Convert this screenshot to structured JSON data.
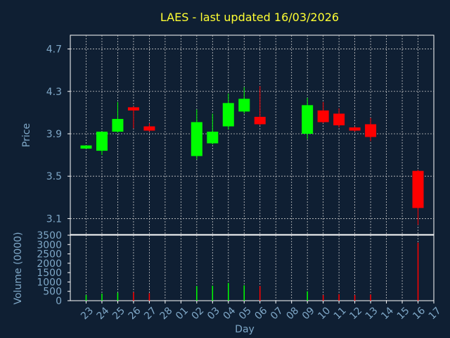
{
  "chart_data": {
    "type": "candlestick",
    "title": "LAES - last updated 16/03/2026",
    "xlabel": "Day",
    "price_axis": {
      "ylabel": "Price",
      "ylim": [
        2.95,
        4.83
      ],
      "ticks": [
        "3.1",
        "3.5",
        "3.9",
        "4.3",
        "4.7"
      ],
      "tick_values": [
        3.1,
        3.5,
        3.9,
        4.3,
        4.7
      ]
    },
    "volume_axis": {
      "ylabel": "Volume (0000)",
      "ylim": [
        0,
        3500
      ],
      "ticks": [
        "0",
        "500",
        "1000",
        "1500",
        "2000",
        "2500",
        "3000",
        "3500"
      ],
      "tick_values": [
        0,
        500,
        1000,
        1500,
        2000,
        2500,
        3000,
        3500
      ]
    },
    "x_ticks": [
      "23",
      "24",
      "25",
      "26",
      "27",
      "28",
      "01",
      "02",
      "03",
      "04",
      "05",
      "06",
      "07",
      "08",
      "09",
      "10",
      "11",
      "12",
      "13",
      "14",
      "15",
      "16",
      "17"
    ],
    "grid": true,
    "colors": {
      "up": "#00ff00",
      "down": "#ff0000",
      "background": "#0f1f33",
      "axis": "#7fa8c8",
      "title": "#ffff33",
      "grid": "#c8c8c8"
    },
    "candles": [
      {
        "x": 0,
        "open": 3.76,
        "high": 3.79,
        "low": 3.76,
        "close": 3.79,
        "volume": 300
      },
      {
        "x": 1,
        "open": 3.74,
        "high": 3.92,
        "low": 3.7,
        "close": 3.92,
        "volume": 380
      },
      {
        "x": 2,
        "open": 3.92,
        "high": 4.2,
        "low": 3.91,
        "close": 4.04,
        "volume": 430
      },
      {
        "x": 3,
        "open": 4.15,
        "high": 4.16,
        "low": 3.95,
        "close": 4.12,
        "volume": 450
      },
      {
        "x": 4,
        "open": 3.97,
        "high": 4.0,
        "low": 3.92,
        "close": 3.93,
        "volume": 400
      },
      {
        "x": 7,
        "open": 3.69,
        "high": 4.13,
        "low": 3.66,
        "close": 4.01,
        "volume": 780
      },
      {
        "x": 8,
        "open": 3.81,
        "high": 4.09,
        "low": 3.8,
        "close": 3.92,
        "volume": 800
      },
      {
        "x": 9,
        "open": 3.97,
        "high": 4.28,
        "low": 3.94,
        "close": 4.19,
        "volume": 950
      },
      {
        "x": 10,
        "open": 4.11,
        "high": 4.34,
        "low": 4.09,
        "close": 4.23,
        "volume": 820
      },
      {
        "x": 11,
        "open": 4.06,
        "high": 4.35,
        "low": 3.98,
        "close": 3.99,
        "volume": 780
      },
      {
        "x": 14,
        "open": 3.9,
        "high": 4.24,
        "low": 3.85,
        "close": 4.17,
        "volume": 500
      },
      {
        "x": 15,
        "open": 4.12,
        "high": 4.2,
        "low": 4.0,
        "close": 4.01,
        "volume": 300
      },
      {
        "x": 16,
        "open": 4.09,
        "high": 4.14,
        "low": 3.96,
        "close": 3.98,
        "volume": 350
      },
      {
        "x": 17,
        "open": 3.96,
        "high": 3.97,
        "low": 3.92,
        "close": 3.93,
        "volume": 300
      },
      {
        "x": 18,
        "open": 3.99,
        "high": 4.05,
        "low": 3.83,
        "close": 3.87,
        "volume": 330
      },
      {
        "x": 21,
        "open": 3.55,
        "high": 3.56,
        "low": 3.04,
        "close": 3.2,
        "volume": 3100
      }
    ]
  }
}
